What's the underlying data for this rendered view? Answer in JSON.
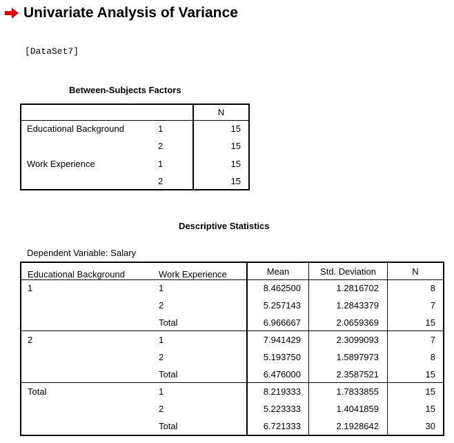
{
  "heading": {
    "title": "Univariate Analysis of Variance",
    "icon": "red-arrow-icon",
    "icon_color": "#e00000"
  },
  "dataset_label": "[DataSet7]",
  "between_subjects": {
    "title": "Between-Subjects Factors",
    "n_header": "N",
    "rows": [
      {
        "factor": "Educational Background",
        "level": "1",
        "n": "15"
      },
      {
        "factor": "",
        "level": "2",
        "n": "15"
      },
      {
        "factor": "Work Experience",
        "level": "1",
        "n": "15"
      },
      {
        "factor": "",
        "level": "2",
        "n": "15"
      }
    ]
  },
  "descriptive": {
    "title": "Descriptive Statistics",
    "dependent_label": "Dependent Variable: Salary",
    "headers": [
      "Educational Background",
      "Work Experience",
      "Mean",
      "Std. Deviation",
      "N"
    ],
    "rows": [
      [
        "1",
        "1",
        "8.462500",
        "1.2816702",
        "8"
      ],
      [
        "",
        "2",
        "5.257143",
        "1.2843379",
        "7"
      ],
      [
        "",
        "Total",
        "6.966667",
        "2.0659369",
        "15"
      ],
      [
        "2",
        "1",
        "7.941429",
        "2.3099093",
        "7"
      ],
      [
        "",
        "2",
        "5.193750",
        "1.5897973",
        "8"
      ],
      [
        "",
        "Total",
        "6.476000",
        "2.3587521",
        "15"
      ],
      [
        "Total",
        "1",
        "8.219333",
        "1.7833855",
        "15"
      ],
      [
        "",
        "2",
        "5.223333",
        "1.4041859",
        "15"
      ],
      [
        "",
        "Total",
        "6.721333",
        "2.1928642",
        "30"
      ]
    ]
  }
}
